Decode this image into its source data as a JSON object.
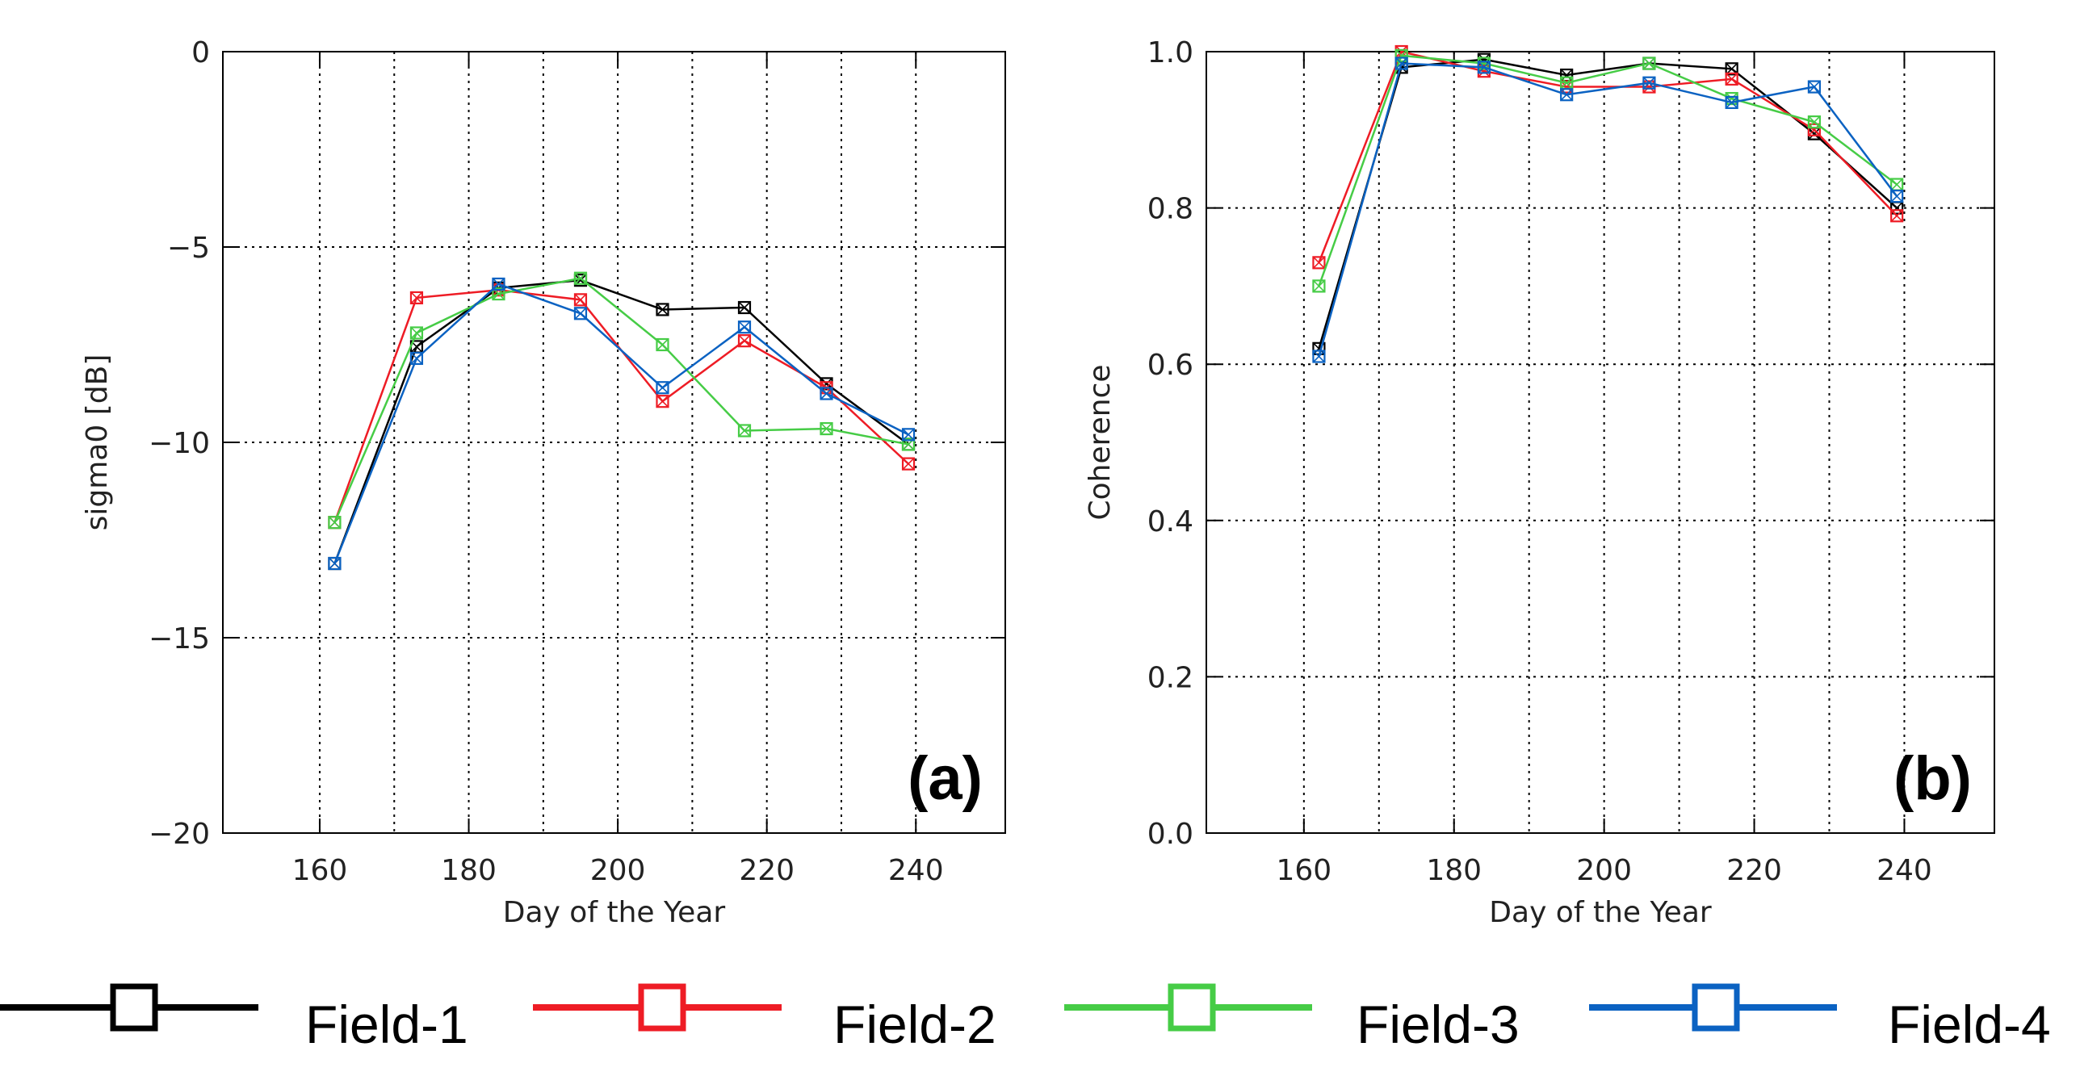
{
  "legend": [
    {
      "name": "Field-1",
      "color": "#000000"
    },
    {
      "name": "Field-2",
      "color": "#ee1c25"
    },
    {
      "name": "Field-3",
      "color": "#46cc46"
    },
    {
      "name": "Field-4",
      "color": "#0b62c2"
    }
  ],
  "chart_data": [
    {
      "type": "line",
      "panel_label": "(a)",
      "xlabel": "Day of the Year",
      "ylabel": "sigma0 [dB]",
      "xlim": [
        147,
        252
      ],
      "ylim": [
        -20,
        0
      ],
      "xticks": [
        160,
        180,
        200,
        220,
        240
      ],
      "xtick_labels": [
        "160",
        "180",
        "200",
        "220",
        "240"
      ],
      "yticks": [
        -20,
        -15,
        -10,
        -5,
        0
      ],
      "ytick_labels": [
        "−20",
        "−15",
        "−10",
        "−5",
        "0"
      ],
      "grid_x": [
        170,
        190,
        210,
        230
      ],
      "grid_y": [
        -15,
        -10,
        -5
      ],
      "x": [
        162,
        173,
        184,
        195,
        206,
        217,
        228,
        239
      ],
      "series": [
        {
          "name": "Field-1",
          "values": [
            -13.1,
            -7.55,
            -6.05,
            -5.85,
            -6.6,
            -6.55,
            -8.5,
            -10.05
          ]
        },
        {
          "name": "Field-2",
          "values": [
            -12.05,
            -6.3,
            -6.1,
            -6.35,
            -8.95,
            -7.4,
            -8.6,
            -10.55
          ]
        },
        {
          "name": "Field-3",
          "values": [
            -12.05,
            -7.2,
            -6.2,
            -5.8,
            -7.5,
            -9.7,
            -9.65,
            -10.05
          ]
        },
        {
          "name": "Field-4",
          "values": [
            -13.1,
            -7.85,
            -5.95,
            -6.7,
            -8.6,
            -7.05,
            -8.75,
            -9.8
          ]
        }
      ]
    },
    {
      "type": "line",
      "panel_label": "(b)",
      "xlabel": "Day of the Year",
      "ylabel": "Coherence",
      "xlim": [
        147,
        252
      ],
      "ylim": [
        0,
        1
      ],
      "xticks": [
        160,
        180,
        200,
        220,
        240
      ],
      "xtick_labels": [
        "160",
        "180",
        "200",
        "220",
        "240"
      ],
      "yticks": [
        0,
        0.2,
        0.4,
        0.6,
        0.8,
        1.0
      ],
      "ytick_labels": [
        "0.0",
        "0.2",
        "0.4",
        "0.6",
        "0.8",
        "1.0"
      ],
      "grid_x": [
        170,
        190,
        210,
        230
      ],
      "grid_y": [
        0.2,
        0.4,
        0.6,
        0.8
      ],
      "x": [
        162,
        173,
        184,
        195,
        206,
        217,
        228,
        239
      ],
      "series": [
        {
          "name": "Field-1",
          "values": [
            0.62,
            0.98,
            0.99,
            0.97,
            0.985,
            0.978,
            0.895,
            0.8
          ]
        },
        {
          "name": "Field-2",
          "values": [
            0.73,
            1.0,
            0.975,
            0.955,
            0.955,
            0.965,
            0.9,
            0.79
          ]
        },
        {
          "name": "Field-3",
          "values": [
            0.7,
            0.995,
            0.985,
            0.96,
            0.985,
            0.94,
            0.91,
            0.83
          ]
        },
        {
          "name": "Field-4",
          "values": [
            0.61,
            0.985,
            0.98,
            0.945,
            0.96,
            0.935,
            0.955,
            0.815
          ]
        }
      ]
    }
  ]
}
